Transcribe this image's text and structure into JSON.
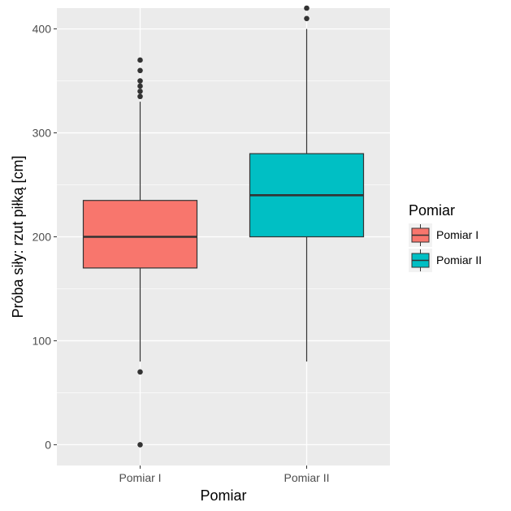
{
  "chart_data": {
    "type": "boxplot",
    "title": "",
    "xlabel": "Pomiar",
    "ylabel": "Próba siły: rzut piłką [cm]",
    "ylim": [
      -20,
      420
    ],
    "yticks": [
      0,
      100,
      200,
      300,
      400
    ],
    "categories": [
      "Pomiar I",
      "Pomiar II"
    ],
    "grid": true,
    "legend": {
      "title": "Pomiar",
      "placement": "right",
      "entries": [
        "Pomiar I",
        "Pomiar II"
      ]
    },
    "series": [
      {
        "name": "Pomiar I",
        "color": "#F8766D",
        "whisker_low": 80,
        "q1": 170,
        "median": 200,
        "q3": 235,
        "whisker_high": 330,
        "outliers": [
          335,
          340,
          345,
          350,
          360,
          370,
          70,
          0
        ]
      },
      {
        "name": "Pomiar II",
        "color": "#00BFC4",
        "whisker_low": 80,
        "q1": 200,
        "median": 240,
        "q3": 280,
        "whisker_high": 400,
        "outliers": [
          410,
          420
        ]
      }
    ]
  }
}
